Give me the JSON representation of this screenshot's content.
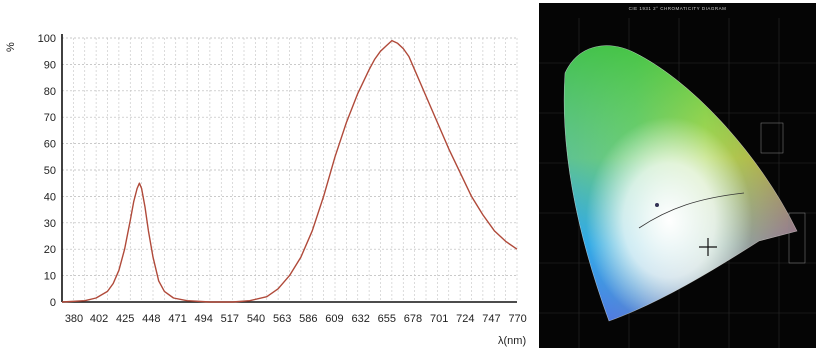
{
  "chart_data": {
    "type": "line",
    "ylabel": "%",
    "xlabel": "λ(nm)",
    "ylim": [
      0,
      100
    ],
    "xlim": [
      380,
      780
    ],
    "grid": true,
    "x_ticks": [
      380,
      402,
      425,
      448,
      471,
      494,
      517,
      540,
      563,
      586,
      609,
      632,
      655,
      678,
      701,
      724,
      747,
      770
    ],
    "y_ticks": [
      0,
      10,
      20,
      30,
      40,
      50,
      60,
      70,
      80,
      90,
      100
    ],
    "series": [
      {
        "color": "#b04a3a",
        "x": [
          380,
          400,
          410,
          420,
          425,
          430,
          435,
          440,
          443,
          446,
          448,
          450,
          453,
          456,
          460,
          465,
          470,
          478,
          490,
          510,
          530,
          545,
          560,
          570,
          580,
          590,
          600,
          610,
          620,
          630,
          640,
          650,
          655,
          660,
          665,
          670,
          675,
          680,
          685,
          690,
          695,
          700,
          710,
          720,
          730,
          740,
          750,
          760,
          770,
          780
        ],
        "values": [
          0,
          0.5,
          1.5,
          4,
          7,
          12,
          20,
          31,
          38,
          43,
          45,
          43,
          36,
          27,
          17,
          8,
          4,
          1.5,
          0.5,
          0,
          0,
          0.5,
          2,
          5,
          10,
          17,
          27,
          40,
          55,
          68,
          79,
          88,
          92,
          95,
          97,
          99,
          98,
          96,
          93,
          88,
          83,
          78,
          68,
          58,
          49,
          40,
          33,
          27,
          23,
          20
        ]
      }
    ]
  },
  "cie": {
    "title": "CIE 1931 2° CHROMATICITY DIAGRAM"
  }
}
